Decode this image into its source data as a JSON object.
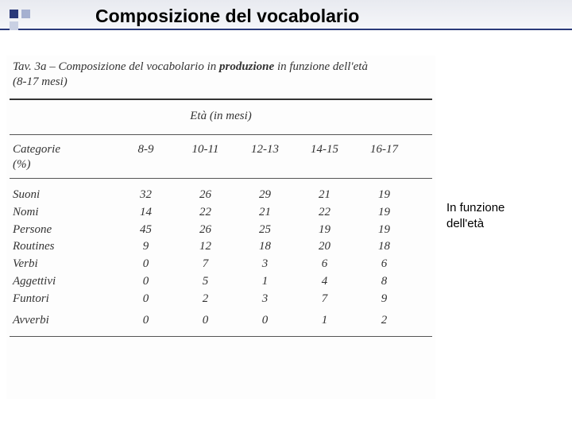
{
  "title": "Composizione del vocabolario",
  "caption_prefix": "Tav. 3a – Composizione del vocabolario in ",
  "caption_bold": "produzione",
  "caption_suffix": " in funzione dell'età",
  "caption_line2": "(8-17 mesi)",
  "age_header": "Età (in mesi)",
  "category_header": "Categorie",
  "pct_label": "(%)",
  "age_cols": [
    "8-9",
    "10-11",
    "12-13",
    "14-15",
    "16-17"
  ],
  "rows": [
    {
      "label": "Suoni",
      "vals": [
        "32",
        "26",
        "29",
        "21",
        "19"
      ]
    },
    {
      "label": "Nomi",
      "vals": [
        "14",
        "22",
        "21",
        "22",
        "19"
      ]
    },
    {
      "label": "Persone",
      "vals": [
        "45",
        "26",
        "25",
        "19",
        "19"
      ]
    },
    {
      "label": "Routines",
      "vals": [
        "9",
        "12",
        "18",
        "20",
        "18"
      ]
    },
    {
      "label": "Verbi",
      "vals": [
        "0",
        "7",
        "3",
        "6",
        "6"
      ]
    },
    {
      "label": "Aggettivi",
      "vals": [
        "0",
        "5",
        "1",
        "4",
        "8"
      ]
    },
    {
      "label": "Funtori",
      "vals": [
        "0",
        "2",
        "3",
        "7",
        "9"
      ]
    }
  ],
  "last_row": {
    "label": "Avverbi",
    "vals": [
      "0",
      "0",
      "0",
      "1",
      "2"
    ]
  },
  "side_note_l1": "In funzione",
  "side_note_l2": "dell'età",
  "colors": {
    "header_border": "#2b3a7a",
    "header_grad_top": "#e8eaf0",
    "header_grad_bot": "#f5f6f9",
    "sq_dark": "#2b3a7a",
    "sq_mid": "#a5b0d0",
    "sq_light": "#c9d0e3",
    "text": "#333333",
    "bg": "#ffffff"
  },
  "font_sizes": {
    "title": 23,
    "body": 15
  }
}
